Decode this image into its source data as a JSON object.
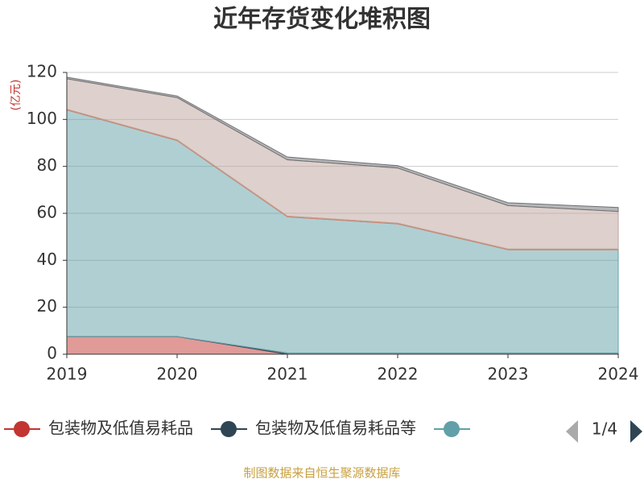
{
  "chart_data": {
    "type": "area",
    "stacked": true,
    "title": "近年存货变化堆积图",
    "y_unit_label": "(亿元)",
    "categories": [
      "2019",
      "2020",
      "2021",
      "2022",
      "2023",
      "2024"
    ],
    "series": [
      {
        "name": "包装物及低值易耗品",
        "color": "#c23531",
        "values": [
          7.5,
          7.5,
          0,
          0,
          0,
          0
        ]
      },
      {
        "name": "包装物及低值易耗品等",
        "color": "#2f4554",
        "values": [
          0,
          0,
          0.5,
          0.5,
          0.5,
          0.5
        ]
      },
      {
        "color": "#61a0a8",
        "values": [
          96.5,
          83.5,
          58,
          55,
          44,
          44
        ]
      },
      {
        "color": "#d48265",
        "values": [
          0.3,
          0.3,
          0.3,
          0.3,
          0.3,
          0.3
        ]
      },
      {
        "color": "#bda29a",
        "values": [
          13,
          18,
          24,
          23.5,
          18.5,
          16
        ]
      },
      {
        "color": "#6e7074",
        "values": [
          0.7,
          0.7,
          1.2,
          1,
          1.2,
          1.7
        ]
      }
    ],
    "ylim": [
      0,
      120
    ],
    "yticks": [
      0,
      20,
      40,
      60,
      80,
      100,
      120
    ],
    "grid": true,
    "legend_page": "1/4",
    "source": "制图数据来自恒生聚源数据库"
  }
}
